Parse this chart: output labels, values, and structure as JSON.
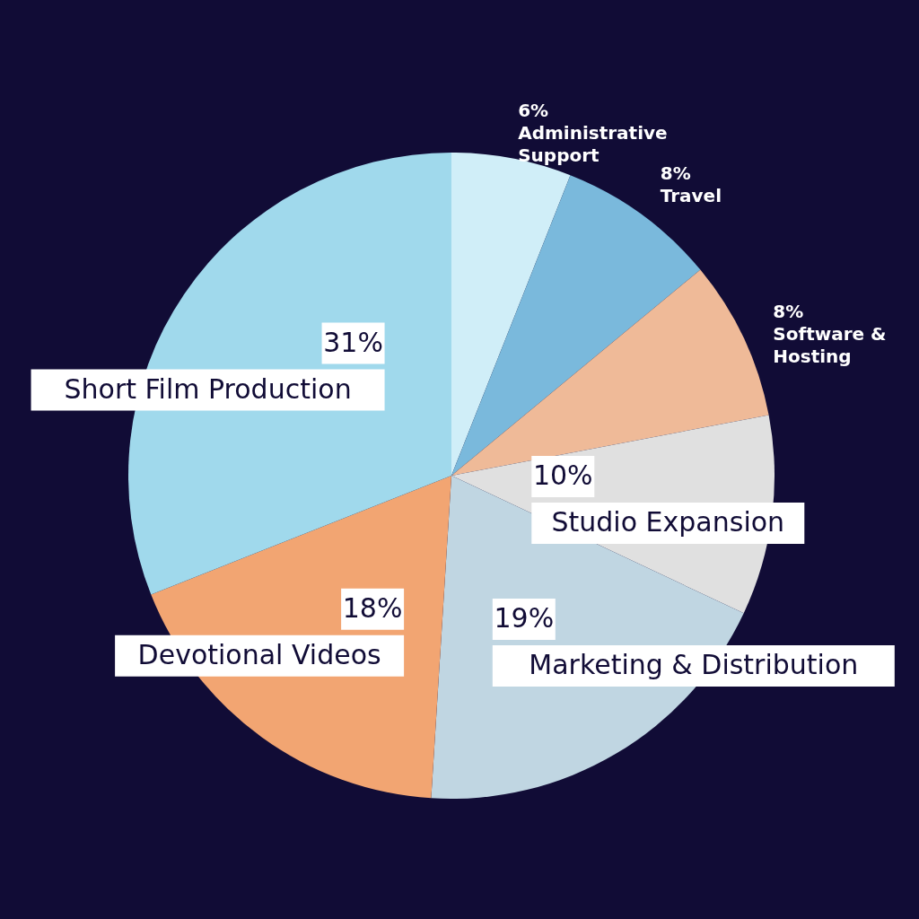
{
  "chart_data": {
    "type": "pie",
    "categories": [
      "Administrative Support",
      "Travel",
      "Software & Hosting",
      "Studio Expansion",
      "Marketing & Distribution",
      "Devotional Videos",
      "Short Film Production"
    ],
    "values": [
      6,
      8,
      8,
      10,
      19,
      18,
      31
    ],
    "colors": [
      "#d0eef8",
      "#7ab9dc",
      "#efba98",
      "#e0e0e0",
      "#c0d6e2",
      "#f2a572",
      "#a0d9ec"
    ],
    "value_labels": [
      "6%",
      "8%",
      "8%",
      "10%",
      "19%",
      "18%",
      "31%"
    ]
  }
}
